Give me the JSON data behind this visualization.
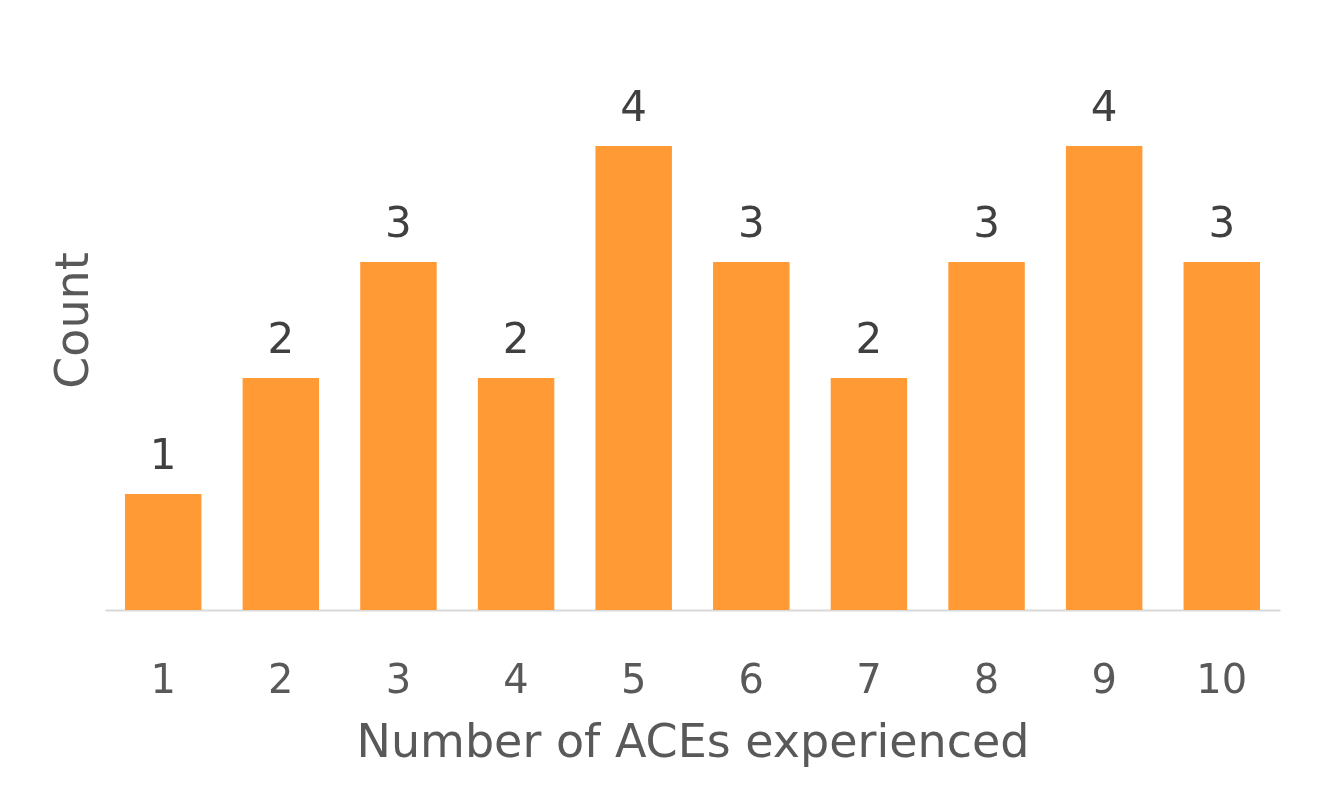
{
  "chart_data": {
    "type": "bar",
    "xlabel": "Number of ACEs experienced",
    "ylabel": "Count",
    "categories": [
      "1",
      "2",
      "3",
      "4",
      "5",
      "6",
      "7",
      "8",
      "9",
      "10"
    ],
    "values": [
      1,
      2,
      3,
      2,
      4,
      3,
      2,
      3,
      4,
      3
    ],
    "color": "#ff9a35",
    "data_labels": true,
    "tick_labels": "x"
  }
}
